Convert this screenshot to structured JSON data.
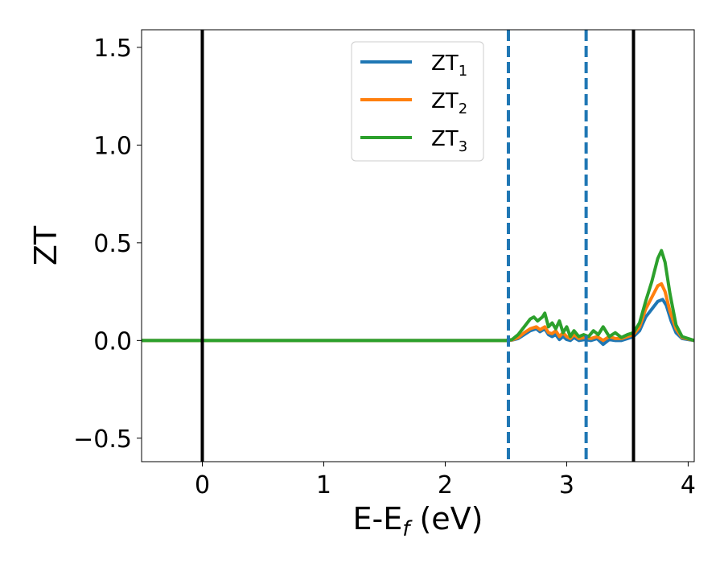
{
  "chart_data": {
    "type": "line",
    "title": "",
    "xlabel": {
      "base": "E-E",
      "sub": "f",
      "unit": " (eV)"
    },
    "ylabel": "ZT",
    "xlim": [
      -0.5,
      4.05
    ],
    "ylim": [
      -0.62,
      1.59
    ],
    "x_ticks": [
      0,
      1,
      2,
      3,
      4
    ],
    "x_tick_labels": [
      "0",
      "1",
      "2",
      "3",
      "4"
    ],
    "y_ticks": [
      -0.5,
      0.0,
      0.5,
      1.0,
      1.5
    ],
    "y_tick_labels": [
      "−0.5",
      "0.0",
      "0.5",
      "1.0",
      "1.5"
    ],
    "grid": false,
    "legend_position": "top-center",
    "vertical_lines": [
      {
        "x": 0.0,
        "color": "#000000",
        "style": "solid"
      },
      {
        "x": 3.55,
        "color": "#000000",
        "style": "solid"
      },
      {
        "x": 2.52,
        "color": "#1f77b4",
        "style": "dashed"
      },
      {
        "x": 3.16,
        "color": "#1f77b4",
        "style": "dashed"
      }
    ],
    "series": [
      {
        "name": "ZT",
        "name_sub": "1",
        "color": "#1f77b4",
        "points": [
          [
            -0.5,
            0
          ],
          [
            2.5,
            0
          ],
          [
            2.55,
            0.002
          ],
          [
            2.6,
            0.01
          ],
          [
            2.65,
            0.03
          ],
          [
            2.7,
            0.05
          ],
          [
            2.75,
            0.06
          ],
          [
            2.78,
            0.045
          ],
          [
            2.82,
            0.06
          ],
          [
            2.85,
            0.03
          ],
          [
            2.88,
            0.02
          ],
          [
            2.91,
            0.03
          ],
          [
            2.94,
            0.005
          ],
          [
            2.97,
            0.02
          ],
          [
            3.0,
            0.005
          ],
          [
            3.03,
            0.0
          ],
          [
            3.06,
            0.015
          ],
          [
            3.1,
            0.0
          ],
          [
            3.15,
            0.005
          ],
          [
            3.2,
            0.0
          ],
          [
            3.25,
            0.01
          ],
          [
            3.3,
            -0.02
          ],
          [
            3.35,
            0.005
          ],
          [
            3.4,
            0.0
          ],
          [
            3.45,
            0.0
          ],
          [
            3.5,
            0.01
          ],
          [
            3.55,
            0.02
          ],
          [
            3.6,
            0.05
          ],
          [
            3.65,
            0.12
          ],
          [
            3.7,
            0.16
          ],
          [
            3.75,
            0.2
          ],
          [
            3.79,
            0.21
          ],
          [
            3.82,
            0.18
          ],
          [
            3.86,
            0.1
          ],
          [
            3.9,
            0.04
          ],
          [
            3.95,
            0.01
          ],
          [
            4.05,
            0
          ]
        ]
      },
      {
        "name": "ZT",
        "name_sub": "2",
        "color": "#ff7f0e",
        "points": [
          [
            -0.5,
            0
          ],
          [
            2.5,
            0
          ],
          [
            2.55,
            0.003
          ],
          [
            2.6,
            0.015
          ],
          [
            2.65,
            0.04
          ],
          [
            2.7,
            0.06
          ],
          [
            2.75,
            0.07
          ],
          [
            2.78,
            0.055
          ],
          [
            2.82,
            0.07
          ],
          [
            2.85,
            0.04
          ],
          [
            2.88,
            0.035
          ],
          [
            2.91,
            0.05
          ],
          [
            2.94,
            0.02
          ],
          [
            2.97,
            0.04
          ],
          [
            3.0,
            0.02
          ],
          [
            3.03,
            0.01
          ],
          [
            3.06,
            0.03
          ],
          [
            3.1,
            0.01
          ],
          [
            3.15,
            0.015
          ],
          [
            3.2,
            0.01
          ],
          [
            3.25,
            0.02
          ],
          [
            3.3,
            0.0
          ],
          [
            3.35,
            0.02
          ],
          [
            3.4,
            0.01
          ],
          [
            3.45,
            0.01
          ],
          [
            3.5,
            0.02
          ],
          [
            3.55,
            0.03
          ],
          [
            3.6,
            0.07
          ],
          [
            3.65,
            0.16
          ],
          [
            3.7,
            0.22
          ],
          [
            3.75,
            0.28
          ],
          [
            3.78,
            0.29
          ],
          [
            3.81,
            0.25
          ],
          [
            3.85,
            0.15
          ],
          [
            3.9,
            0.06
          ],
          [
            3.95,
            0.015
          ],
          [
            4.05,
            0
          ]
        ]
      },
      {
        "name": "ZT",
        "name_sub": "3",
        "color": "#2ca02c",
        "points": [
          [
            -0.5,
            0
          ],
          [
            2.5,
            0
          ],
          [
            2.55,
            0.005
          ],
          [
            2.6,
            0.03
          ],
          [
            2.65,
            0.07
          ],
          [
            2.7,
            0.11
          ],
          [
            2.73,
            0.12
          ],
          [
            2.76,
            0.1
          ],
          [
            2.8,
            0.12
          ],
          [
            2.82,
            0.14
          ],
          [
            2.85,
            0.07
          ],
          [
            2.88,
            0.09
          ],
          [
            2.91,
            0.06
          ],
          [
            2.94,
            0.1
          ],
          [
            2.97,
            0.04
          ],
          [
            3.0,
            0.07
          ],
          [
            3.03,
            0.02
          ],
          [
            3.06,
            0.05
          ],
          [
            3.1,
            0.02
          ],
          [
            3.14,
            0.03
          ],
          [
            3.18,
            0.02
          ],
          [
            3.22,
            0.05
          ],
          [
            3.26,
            0.03
          ],
          [
            3.3,
            0.07
          ],
          [
            3.35,
            0.02
          ],
          [
            3.4,
            0.04
          ],
          [
            3.45,
            0.015
          ],
          [
            3.5,
            0.03
          ],
          [
            3.55,
            0.04
          ],
          [
            3.6,
            0.09
          ],
          [
            3.65,
            0.2
          ],
          [
            3.7,
            0.3
          ],
          [
            3.75,
            0.42
          ],
          [
            3.78,
            0.46
          ],
          [
            3.81,
            0.4
          ],
          [
            3.85,
            0.24
          ],
          [
            3.9,
            0.08
          ],
          [
            3.95,
            0.02
          ],
          [
            4.05,
            0
          ]
        ]
      }
    ]
  }
}
